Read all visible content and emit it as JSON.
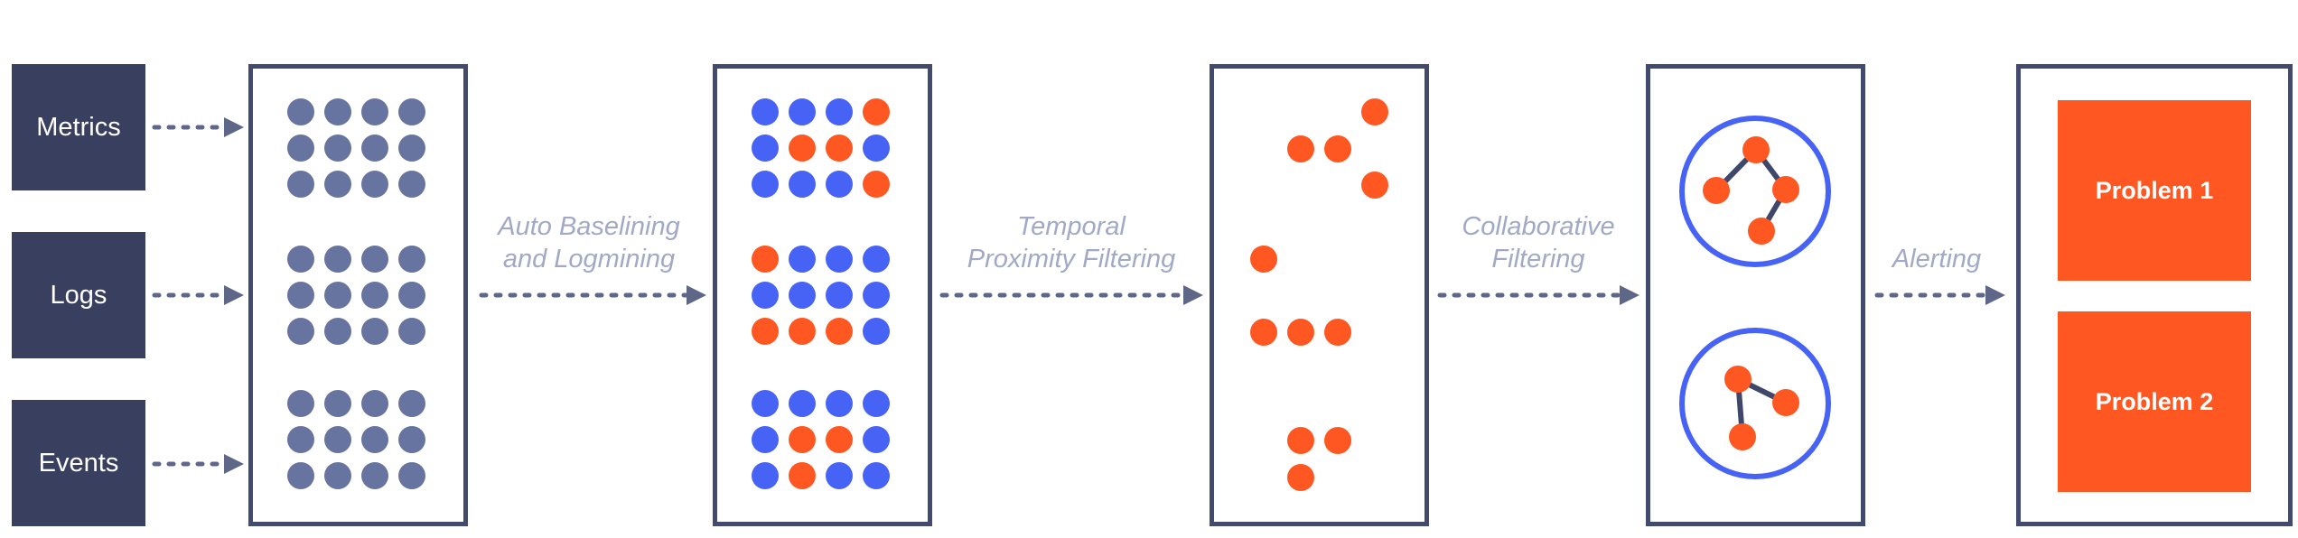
{
  "colors": {
    "source_box": "#393f5f",
    "panel_border": "#424a6e",
    "arrow": "#5f6789",
    "gray_dot": "#6874a0",
    "blue_dot": "#4763f5",
    "orange_dot": "#ff5722",
    "label": "#a2a9c6",
    "cluster_line": "#3f476b"
  },
  "sources": [
    {
      "label": "Metrics"
    },
    {
      "label": "Logs"
    },
    {
      "label": "Events"
    }
  ],
  "steps": [
    {
      "line1": "Auto Baselining",
      "line2": "and Logmining"
    },
    {
      "line1": "Temporal",
      "line2": "Proximity Filtering"
    },
    {
      "line1": "Collaborative",
      "line2": "Filtering"
    },
    {
      "line1": "Alerting",
      "line2": ""
    }
  ],
  "problems": [
    {
      "label": "Problem 1"
    },
    {
      "label": "Problem 2"
    }
  ],
  "panel1_groups": [
    [
      "gggg",
      "gggg",
      "gggg"
    ],
    [
      "gggg",
      "gggg",
      "gggg"
    ],
    [
      "gggg",
      "gggg",
      "gggg"
    ]
  ],
  "panel2_groups": [
    [
      "bbbo",
      "boob",
      "bbbo"
    ],
    [
      "obbb",
      "bbbb",
      "ooob"
    ],
    [
      "bbbb",
      "boob",
      "bobb"
    ]
  ]
}
